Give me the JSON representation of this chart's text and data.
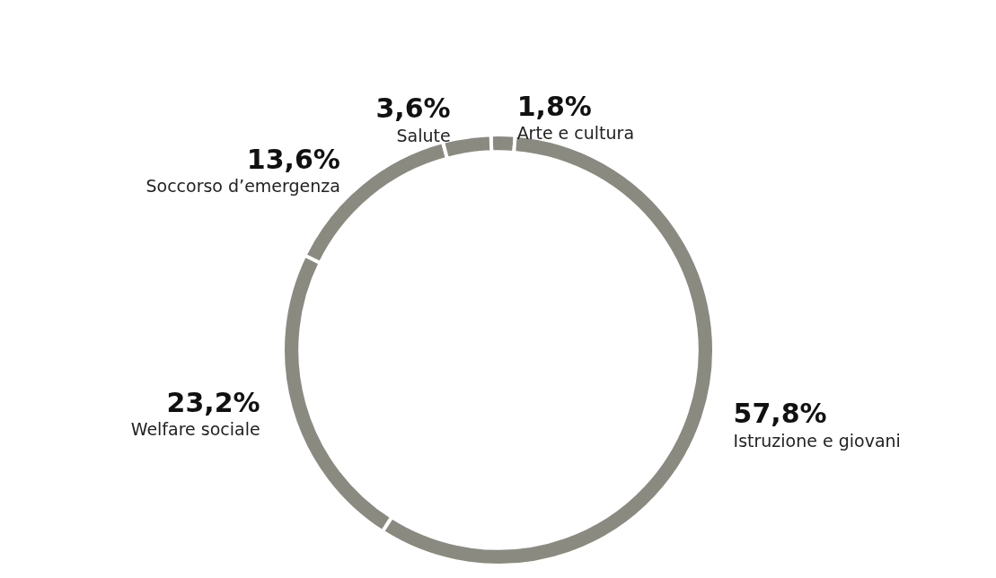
{
  "chart_data": {
    "type": "donut",
    "categories": [
      "Arte e cultura",
      "Istruzione e giovani",
      "Welfare sociale",
      "Soccorso d’emergenza",
      "Salute"
    ],
    "values": [
      1.8,
      57.8,
      23.2,
      13.6,
      3.6
    ],
    "colors": [
      "#8a8a80",
      "#8a8a80",
      "#8a8a80",
      "#8a8a80",
      "#8a8a80"
    ],
    "value_labels": [
      "1,8%",
      "57,8%",
      "23,2%",
      "13,6%",
      "3,6%"
    ],
    "legend": false
  }
}
